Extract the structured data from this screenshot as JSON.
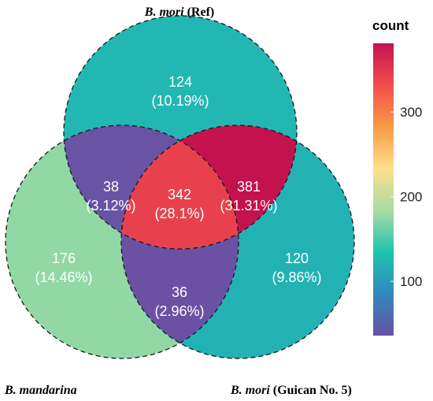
{
  "sets": [
    {
      "id": "ref",
      "name_italic": "B. mori",
      "name_suffix": " (Ref)"
    },
    {
      "id": "mand",
      "name_italic": "B. mandarina",
      "name_suffix": ""
    },
    {
      "id": "guican",
      "name_italic": "B. mori",
      "name_suffix": " (Guican No. 5)"
    }
  ],
  "regions": [
    {
      "id": "ref_only",
      "sets": [
        "ref"
      ],
      "count": "124",
      "percent": "(10.19%)",
      "value": 124
    },
    {
      "id": "mand_only",
      "sets": [
        "mand"
      ],
      "count": "176",
      "percent": "(14.46%)",
      "value": 176
    },
    {
      "id": "guican_only",
      "sets": [
        "guican"
      ],
      "count": "120",
      "percent": "(9.86%)",
      "value": 120
    },
    {
      "id": "ref_mand",
      "sets": [
        "ref",
        "mand"
      ],
      "count": "38",
      "percent": "(3.12%)",
      "value": 38
    },
    {
      "id": "ref_guican",
      "sets": [
        "ref",
        "guican"
      ],
      "count": "381",
      "percent": "(31.31%)",
      "value": 381
    },
    {
      "id": "mand_guican",
      "sets": [
        "mand",
        "guican"
      ],
      "count": "36",
      "percent": "(2.96%)",
      "value": 36
    },
    {
      "id": "all",
      "sets": [
        "ref",
        "mand",
        "guican"
      ],
      "count": "342",
      "percent": "(28.1%)",
      "value": 342
    }
  ],
  "legend": {
    "title": "count",
    "ticks": [
      "100",
      "200",
      "300"
    ],
    "tick_values": [
      100,
      200,
      300
    ],
    "min": 36,
    "max": 381,
    "colors": [
      "#6a51a3",
      "#3288bd",
      "#1dc4b0",
      "#a7dca3",
      "#fee08b",
      "#f99a45",
      "#f24e4c",
      "#c4124f"
    ]
  }
}
